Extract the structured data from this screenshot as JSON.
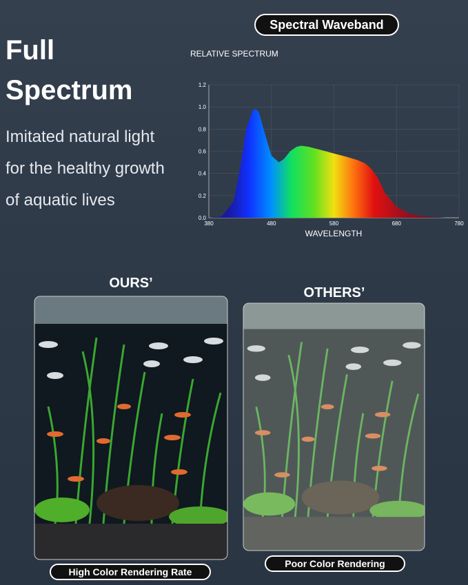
{
  "header": {
    "title": "Full Spectrum",
    "subtitle": "Imitated natural light for the healthy growth of aquatic lives"
  },
  "badge": "Spectral Waveband",
  "chart_data": {
    "type": "area",
    "ylabel": "RELATIVE SPECTRUM",
    "xlabel": "WAVELENGTH",
    "x": [
      380,
      400,
      420,
      430,
      440,
      450,
      455,
      460,
      470,
      480,
      492,
      500,
      510,
      520,
      528,
      540,
      560,
      580,
      600,
      618,
      630,
      640,
      650,
      662,
      680,
      700,
      720,
      740,
      760,
      780
    ],
    "y": [
      0,
      0.01,
      0.15,
      0.45,
      0.8,
      0.97,
      0.98,
      0.95,
      0.75,
      0.56,
      0.5,
      0.53,
      0.6,
      0.64,
      0.65,
      0.64,
      0.61,
      0.58,
      0.55,
      0.52,
      0.49,
      0.44,
      0.36,
      0.22,
      0.1,
      0.04,
      0.015,
      0.005,
      0,
      0
    ],
    "xlim": [
      380,
      780
    ],
    "ylim": [
      0,
      1.2
    ],
    "xticks": [
      380,
      480,
      580,
      680,
      780
    ],
    "yticks": [
      {
        "value": 0,
        "label": "0.0"
      },
      0.2,
      0.4,
      0.6,
      0.8,
      {
        "value": 1,
        "label": "1.0"
      },
      1.2
    ],
    "grid": true
  },
  "comparison": {
    "ours": {
      "label": "OURS’",
      "caption": "High Color Rendering Rate"
    },
    "others": {
      "label": "OTHERS’",
      "caption": "Poor Color Rendering"
    }
  }
}
